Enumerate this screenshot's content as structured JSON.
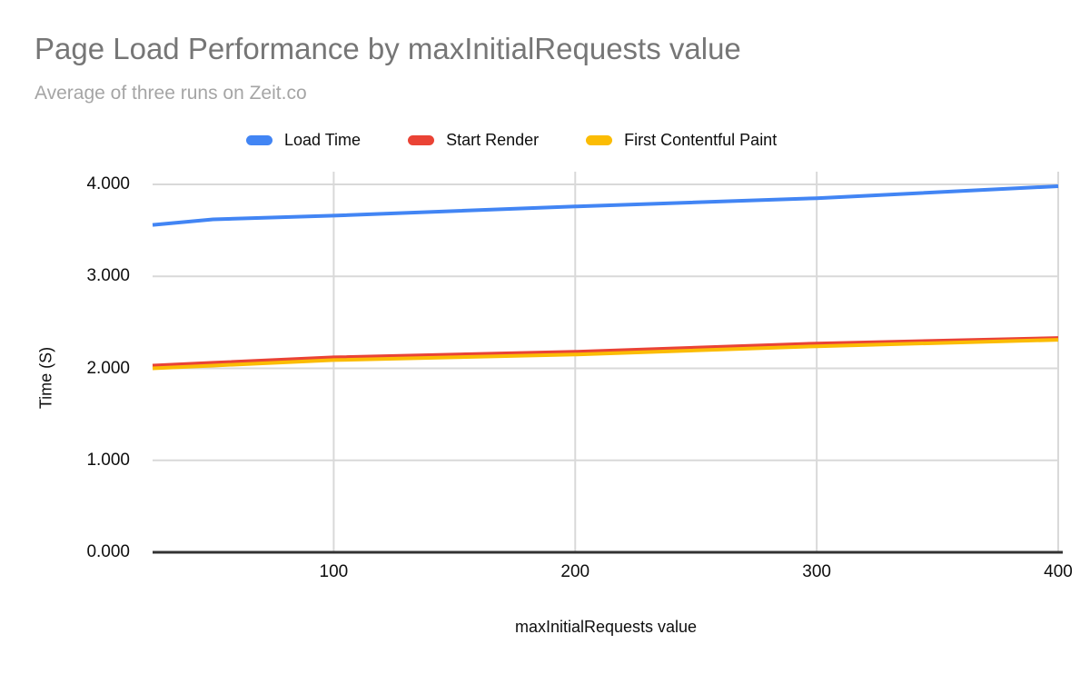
{
  "title": "Page Load Performance by maxInitialRequests value",
  "subtitle": "Average of three runs on Zeit.co",
  "colors": {
    "title_text": "#767676",
    "subtitle_text": "#A5A5A5",
    "tick_text": "#0e0e0e",
    "gridline": "#d9d9d9",
    "baseline": "#333333",
    "background": "#ffffff",
    "load_time": "#4285F4",
    "start_render": "#EA4335",
    "first_contentful_paint": "#FBBC04"
  },
  "chart_data": {
    "type": "line",
    "title": "Page Load Performance by maxInitialRequests value",
    "subtitle": "Average of three runs on Zeit.co",
    "xlabel": "maxInitialRequests value",
    "ylabel": "Time (S)",
    "xlim": [
      25,
      400
    ],
    "ylim": [
      0,
      4
    ],
    "grid": true,
    "legend_position": "top",
    "x": [
      25,
      50,
      100,
      200,
      300,
      400
    ],
    "series": [
      {
        "name": "Load Time",
        "color": "#4285F4",
        "values": [
          3.56,
          3.62,
          3.66,
          3.76,
          3.85,
          3.98
        ]
      },
      {
        "name": "Start Render",
        "color": "#EA4335",
        "values": [
          2.03,
          2.06,
          2.12,
          2.18,
          2.27,
          2.33
        ]
      },
      {
        "name": "First Contentful Paint",
        "color": "#FBBC04",
        "values": [
          2.0,
          2.03,
          2.09,
          2.15,
          2.24,
          2.31
        ]
      }
    ],
    "x_ticks": [
      {
        "label": "100",
        "value": 100
      },
      {
        "label": "200",
        "value": 200
      },
      {
        "label": "300",
        "value": 300
      },
      {
        "label": "400",
        "value": 400
      }
    ],
    "y_ticks": [
      {
        "label": "0.000",
        "value": 0
      },
      {
        "label": "1.000",
        "value": 1
      },
      {
        "label": "2.000",
        "value": 2
      },
      {
        "label": "3.000",
        "value": 3
      },
      {
        "label": "4.000",
        "value": 4
      }
    ]
  }
}
